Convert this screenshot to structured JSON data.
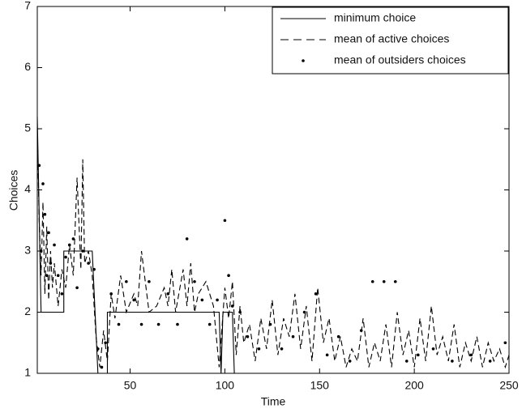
{
  "chart_data": {
    "type": "line",
    "x_label": "Time",
    "y_label": "Choices",
    "xlim": [
      1,
      250
    ],
    "ylim": [
      1,
      7
    ],
    "xticks": [
      50,
      100,
      150,
      200,
      250
    ],
    "yticks": [
      1,
      2,
      3,
      4,
      5,
      6,
      7
    ],
    "grid": false,
    "legend_position": "upper-right",
    "series": [
      {
        "name": "minimum choice",
        "color": "#000000",
        "line_style": "solid",
        "x": [
          1,
          3,
          15,
          15,
          30,
          33,
          38,
          38,
          97,
          98,
          99,
          104,
          105,
          250
        ],
        "values": [
          5.2,
          2,
          2,
          3,
          3,
          1,
          1,
          2,
          2,
          1,
          2,
          2,
          1,
          1
        ]
      },
      {
        "name": "mean of active choices",
        "color": "#000000",
        "line_style": "dashed",
        "x": [
          1,
          2,
          3,
          4,
          5,
          6,
          7,
          8,
          9,
          10,
          12,
          14,
          16,
          18,
          20,
          22,
          24,
          25,
          26,
          28,
          30,
          32,
          34,
          36,
          38,
          40,
          42,
          45,
          48,
          52,
          54,
          56,
          60,
          64,
          68,
          70,
          72,
          74,
          78,
          80,
          82,
          84,
          86,
          90,
          94,
          97,
          100,
          102,
          104,
          106,
          108,
          110,
          113,
          116,
          119,
          122,
          125,
          128,
          131,
          134,
          137,
          140,
          143,
          146,
          149,
          152,
          155,
          158,
          161,
          164,
          167,
          170,
          173,
          176,
          179,
          182,
          185,
          188,
          191,
          194,
          197,
          200,
          203,
          206,
          209,
          212,
          215,
          218,
          221,
          224,
          227,
          230,
          233,
          236,
          239,
          242,
          245,
          248,
          250
        ],
        "values": [
          5.0,
          3.5,
          2.6,
          3.8,
          2.3,
          3.4,
          2.2,
          3.0,
          2.4,
          2.8,
          2.1,
          2.7,
          2.4,
          3.1,
          2.6,
          4.2,
          2.7,
          4.5,
          2.8,
          3.0,
          2.6,
          1.6,
          1.1,
          1.7,
          1.2,
          2.3,
          1.9,
          2.6,
          2.0,
          2.3,
          2.1,
          3.0,
          2.0,
          2.1,
          2.4,
          2.1,
          2.7,
          2.0,
          2.7,
          2.1,
          2.8,
          2.0,
          2.3,
          2.5,
          2.1,
          1.1,
          2.4,
          1.9,
          2.5,
          1.3,
          2.1,
          1.5,
          1.8,
          1.2,
          1.9,
          1.4,
          2.2,
          1.3,
          1.9,
          1.6,
          2.3,
          1.4,
          2.1,
          1.2,
          2.4,
          1.5,
          1.9,
          1.2,
          1.6,
          1.1,
          1.4,
          1.2,
          1.9,
          1.1,
          1.5,
          1.2,
          1.8,
          1.1,
          2.0,
          1.3,
          1.7,
          1.1,
          1.9,
          1.2,
          2.1,
          1.3,
          1.6,
          1.2,
          1.8,
          1.1,
          1.5,
          1.2,
          1.6,
          1.1,
          1.5,
          1.2,
          1.4,
          1.1,
          1.3
        ]
      },
      {
        "name": "mean of outsiders choices",
        "color": "#000000",
        "line_style": "dots",
        "x": [
          2,
          3,
          4,
          5,
          6,
          7,
          8,
          10,
          12,
          14,
          16,
          18,
          20,
          22,
          25,
          28,
          31,
          33,
          35,
          37,
          40,
          44,
          48,
          52,
          56,
          60,
          65,
          70,
          75,
          80,
          84,
          88,
          92,
          96,
          100,
          102,
          104,
          108,
          112,
          118,
          124,
          130,
          136,
          142,
          148,
          154,
          160,
          166,
          172,
          178,
          184,
          190,
          196,
          202,
          210,
          220,
          230,
          240,
          248
        ],
        "values": [
          4.4,
          3.0,
          4.1,
          3.6,
          2.6,
          3.3,
          2.8,
          3.1,
          2.6,
          2.3,
          2.9,
          3.1,
          3.2,
          2.4,
          3.0,
          2.8,
          2.7,
          1.4,
          1.1,
          1.5,
          2.3,
          1.8,
          2.5,
          2.2,
          1.8,
          2.5,
          1.8,
          2.3,
          1.8,
          3.2,
          2.5,
          2.2,
          1.8,
          2.2,
          3.5,
          2.6,
          2.1,
          2.0,
          1.6,
          1.4,
          1.8,
          1.4,
          1.6,
          2.0,
          2.3,
          1.3,
          1.6,
          1.2,
          1.7,
          2.5,
          2.5,
          2.5,
          1.2,
          1.3,
          1.4,
          1.2,
          1.3,
          1.2,
          1.5
        ]
      }
    ]
  }
}
